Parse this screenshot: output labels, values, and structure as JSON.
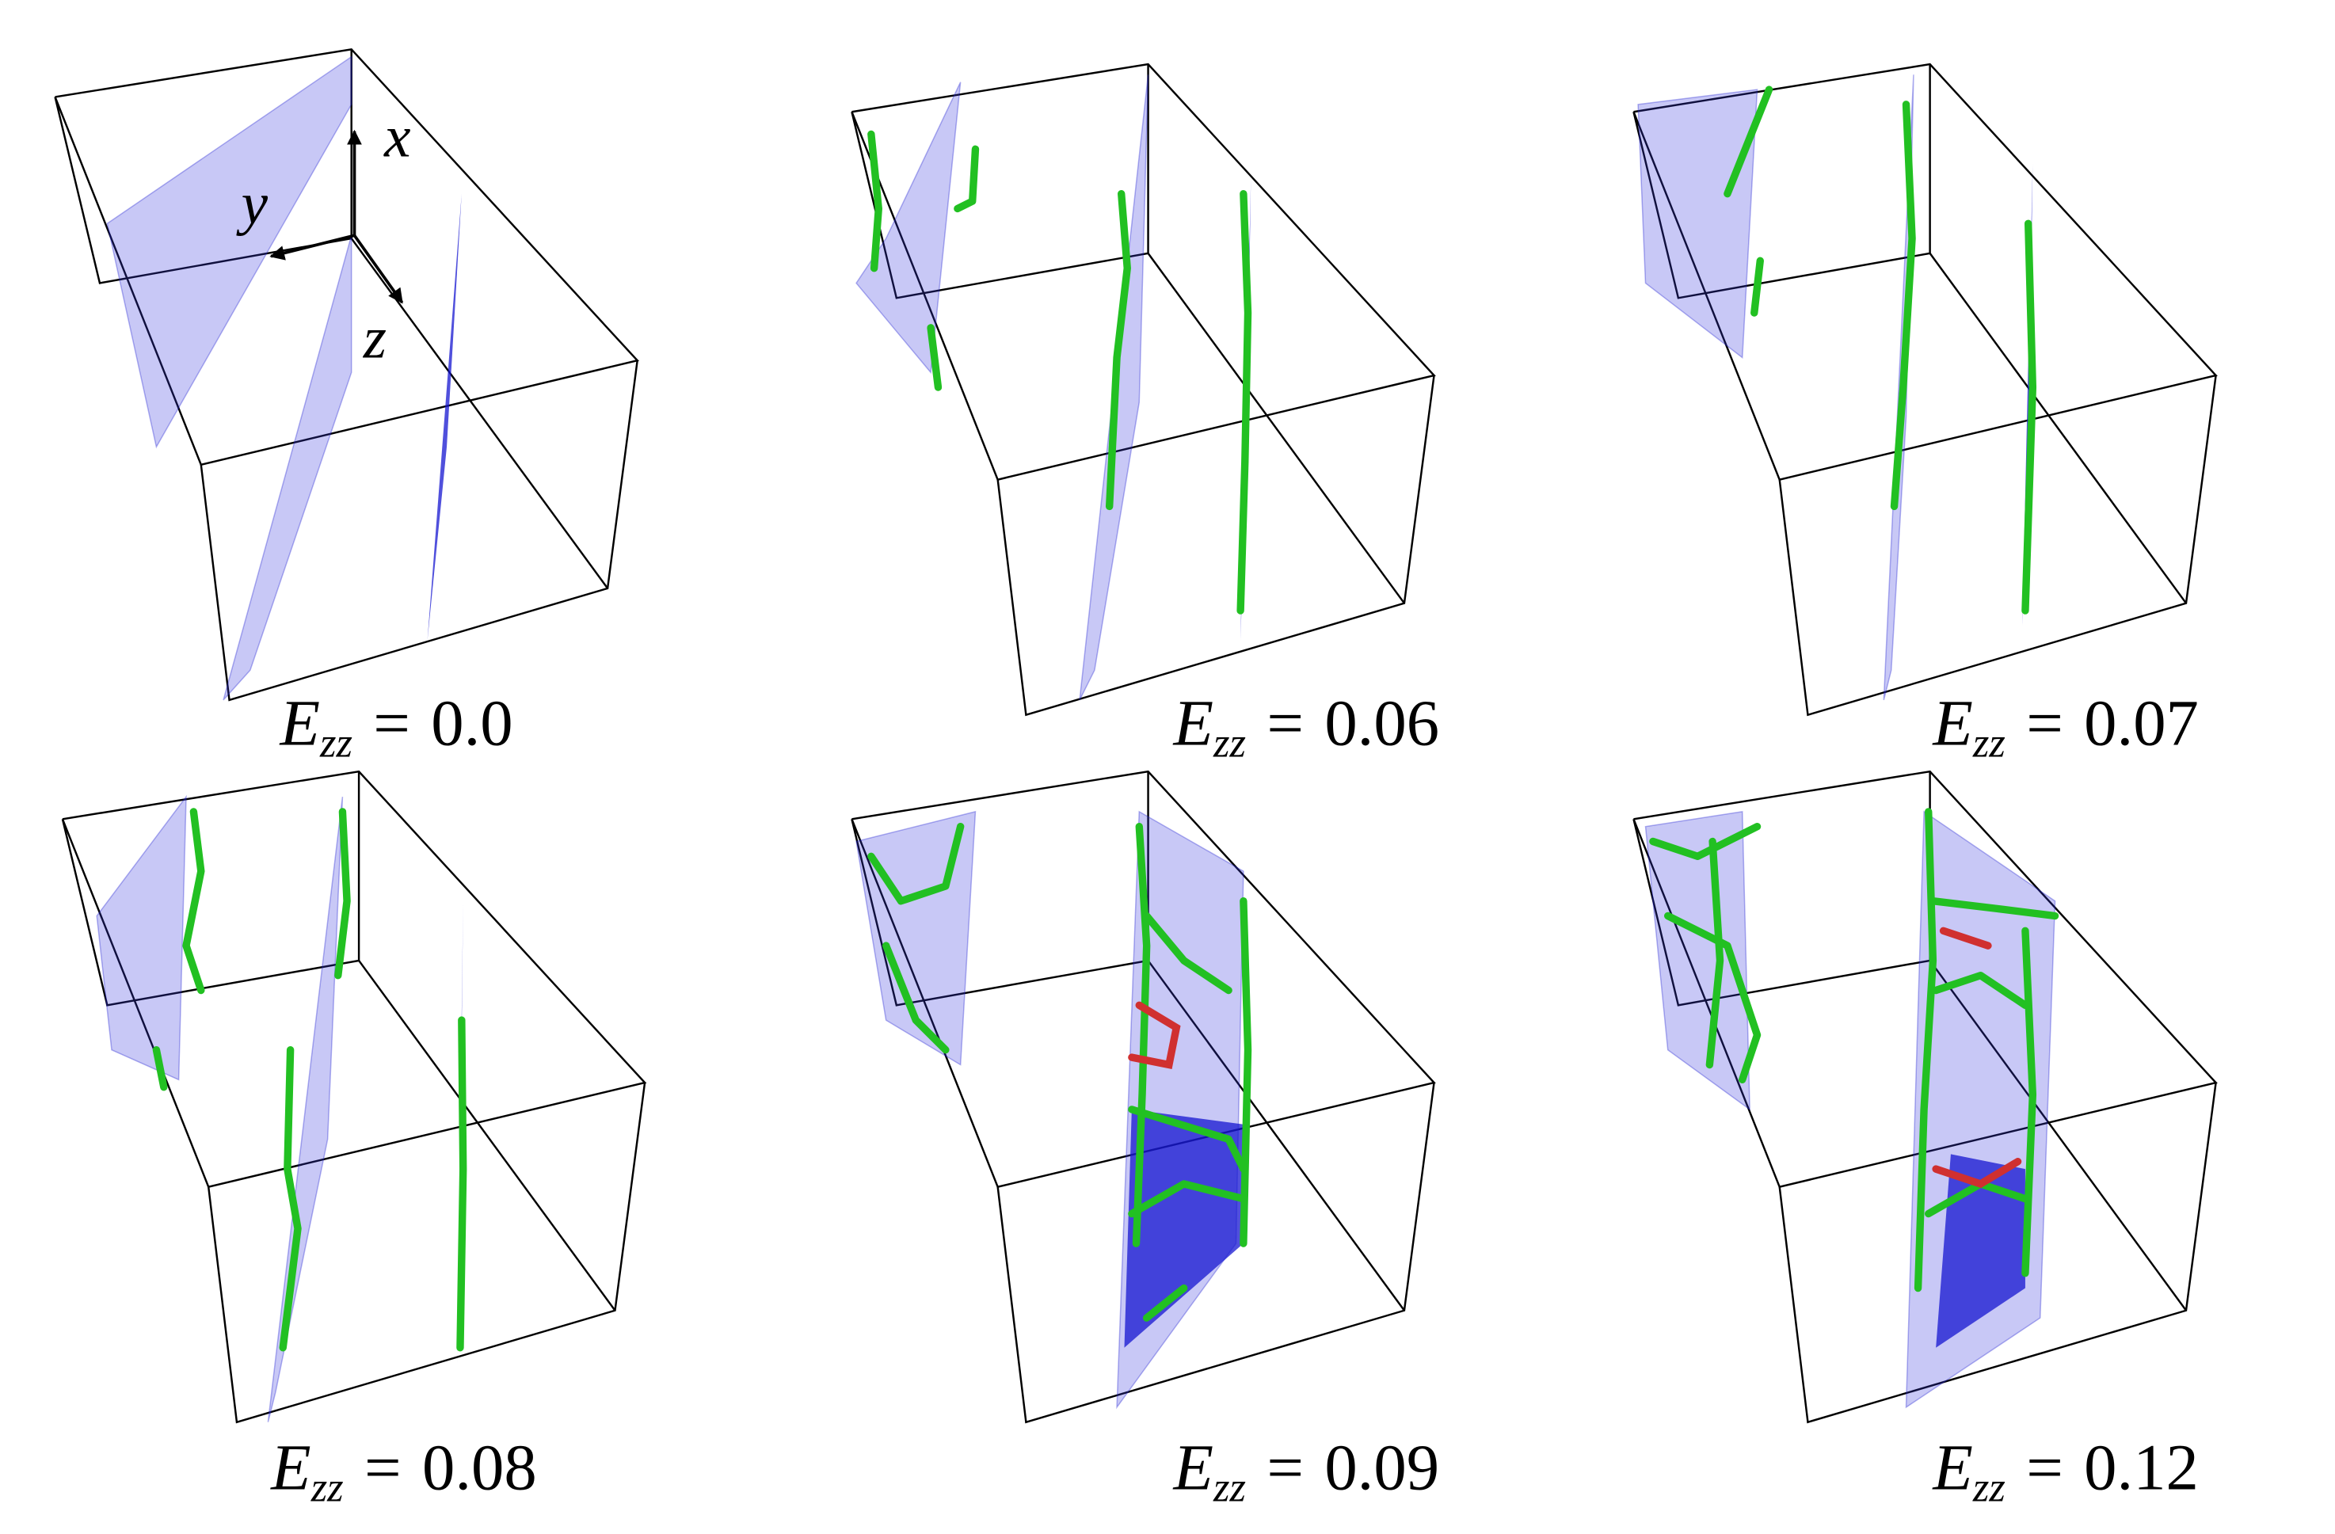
{
  "axes": {
    "x": "x",
    "y": "y",
    "z": "z"
  },
  "panels": [
    {
      "symbol": "E",
      "subscript": "zz",
      "equals": "=",
      "value": "0.0"
    },
    {
      "symbol": "E",
      "subscript": "zz",
      "equals": "=",
      "value": "0.06"
    },
    {
      "symbol": "E",
      "subscript": "zz",
      "equals": "=",
      "value": "0.07"
    },
    {
      "symbol": "E",
      "subscript": "zz",
      "equals": "=",
      "value": "0.08"
    },
    {
      "symbol": "E",
      "subscript": "zz",
      "equals": "=",
      "value": "0.09"
    },
    {
      "symbol": "E",
      "subscript": "zz",
      "equals": "=",
      "value": "0.12"
    }
  ]
}
